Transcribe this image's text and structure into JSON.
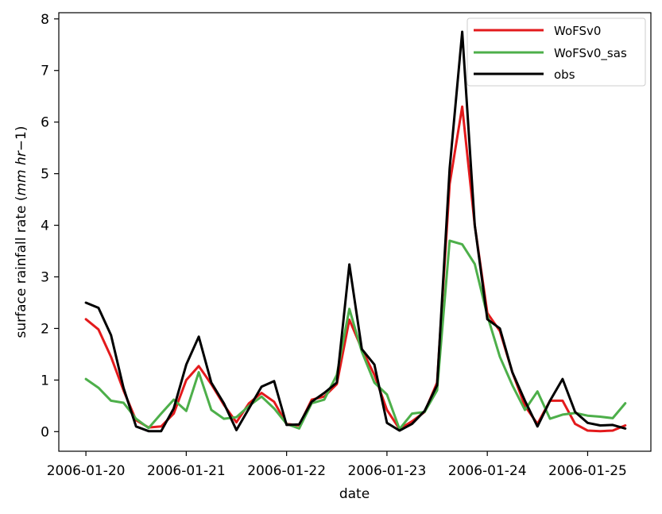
{
  "chart_data": {
    "type": "line",
    "title": "",
    "xlabel": "date",
    "ylabel": "surface rainfall rate (mm hr−1)",
    "ylabel_parts": {
      "prefix": "surface rainfall rate (",
      "unit_mm": "mm",
      "unit_hr": "hr",
      "exponent": "−1",
      "suffix": ")"
    },
    "x_ticks": [
      "2006-01-20",
      "2006-01-21",
      "2006-01-22",
      "2006-01-23",
      "2006-01-24",
      "2006-01-25"
    ],
    "y_ticks": [
      "0",
      "1",
      "2",
      "3",
      "4",
      "5",
      "6",
      "7",
      "8"
    ],
    "x_range_days": [
      -0.27,
      5.63
    ],
    "ylim": [
      -0.38,
      8.12
    ],
    "grid": false,
    "legend_position": "top-right",
    "x_start": "2006-01-20 00:00",
    "x_step_hours": 3,
    "series": [
      {
        "name": "WoFSv0",
        "color": "#e31a1c",
        "values": [
          2.18,
          1.98,
          1.45,
          0.8,
          0.22,
          0.08,
          0.1,
          0.35,
          1.0,
          1.27,
          0.92,
          0.52,
          0.18,
          0.55,
          0.75,
          0.58,
          0.15,
          0.12,
          0.62,
          0.68,
          0.92,
          2.17,
          1.6,
          1.1,
          0.42,
          0.05,
          0.2,
          0.38,
          0.95,
          4.8,
          6.3,
          4.0,
          2.3,
          1.95,
          1.15,
          0.5,
          0.15,
          0.6,
          0.6,
          0.15,
          0.02,
          0.01,
          0.02,
          0.12
        ]
      },
      {
        "name": "WoFSv0_sas",
        "color": "#4daf4a",
        "values": [
          1.02,
          0.85,
          0.6,
          0.56,
          0.25,
          0.07,
          0.35,
          0.62,
          0.4,
          1.15,
          0.42,
          0.25,
          0.28,
          0.5,
          0.68,
          0.45,
          0.15,
          0.06,
          0.55,
          0.62,
          1.1,
          2.38,
          1.55,
          0.95,
          0.72,
          0.05,
          0.35,
          0.38,
          0.8,
          3.7,
          3.63,
          3.25,
          2.25,
          1.45,
          0.9,
          0.42,
          0.78,
          0.25,
          0.33,
          0.36,
          0.31,
          0.29,
          0.26,
          0.55
        ]
      },
      {
        "name": "obs",
        "color": "#000000",
        "values": [
          2.5,
          2.4,
          1.87,
          0.85,
          0.1,
          0.01,
          0.01,
          0.45,
          1.3,
          1.84,
          0.95,
          0.55,
          0.03,
          0.45,
          0.87,
          0.98,
          0.13,
          0.14,
          0.58,
          0.75,
          0.95,
          3.24,
          1.6,
          1.3,
          0.17,
          0.02,
          0.15,
          0.4,
          0.9,
          5.1,
          7.75,
          4.0,
          2.18,
          2.0,
          1.15,
          0.6,
          0.1,
          0.6,
          1.02,
          0.38,
          0.17,
          0.12,
          0.13,
          0.06
        ]
      }
    ]
  }
}
